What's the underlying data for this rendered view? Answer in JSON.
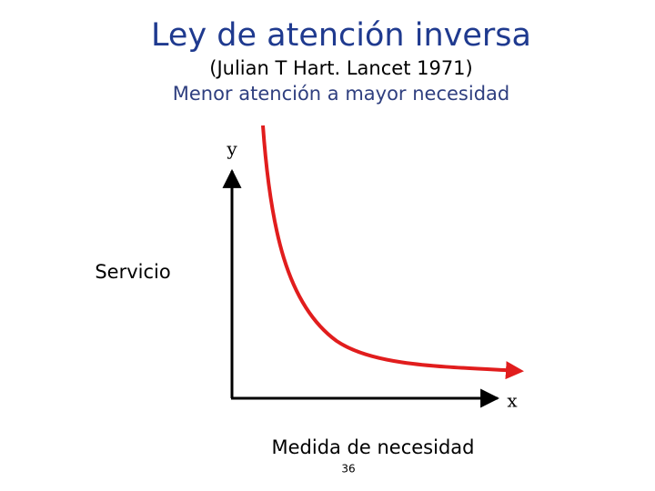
{
  "header": {
    "title": "Ley de atención inversa",
    "subtitle": "(Julian T Hart. Lancet 1971)",
    "tagline": "Menor atención a mayor necesidad"
  },
  "diagram": {
    "y_axis_letter": "y",
    "x_axis_letter": "x",
    "y_axis_label": "Servicio",
    "x_axis_label": "Medida de necesidad"
  },
  "footer": {
    "page_number": "36"
  }
}
